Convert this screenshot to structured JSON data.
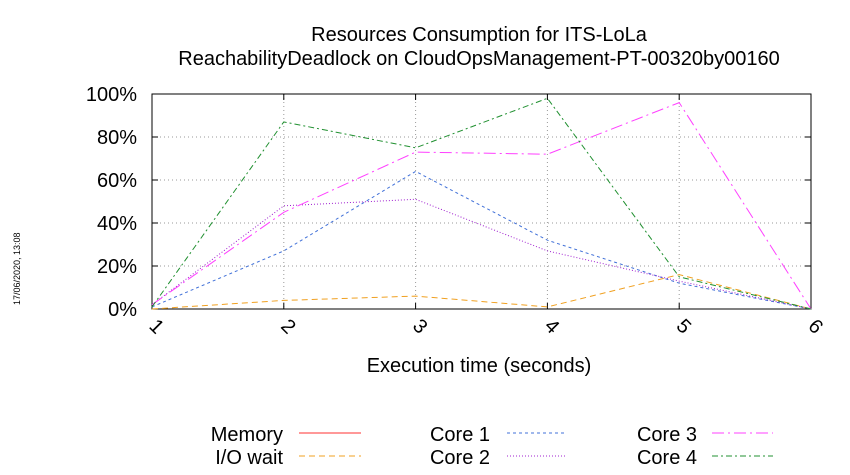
{
  "side_stamp": "17/06/2020, 13:08",
  "chart_data": {
    "type": "line",
    "title": "Resources Consumption for ITS-LoLa",
    "subtitle": "ReachabilityDeadlock on CloudOpsManagement-PT-00320by00160",
    "xlabel": "Execution time (seconds)",
    "ylabel": "",
    "x": [
      1,
      2,
      3,
      4,
      5,
      6
    ],
    "xlim": [
      1,
      6
    ],
    "ylim": [
      0,
      100
    ],
    "y_ticks": [
      "0%",
      "20%",
      "40%",
      "60%",
      "80%",
      "100%"
    ],
    "x_ticks": [
      "1",
      "2",
      "3",
      "4",
      "5",
      "6"
    ],
    "grid": true,
    "legend_position": "bottom",
    "series": [
      {
        "name": "Memory",
        "color": "#ff3030",
        "dash": "solid",
        "values": [
          null,
          null,
          null,
          null,
          null,
          null
        ]
      },
      {
        "name": "I/O wait",
        "color": "#f0a020",
        "dash": "6,4",
        "values": [
          0,
          4,
          6,
          1,
          16,
          0
        ]
      },
      {
        "name": "Core 1",
        "color": "#4070d8",
        "dash": "3,3",
        "values": [
          1,
          27,
          64,
          32,
          12,
          0
        ]
      },
      {
        "name": "Core 2",
        "color": "#a020d0",
        "dash": "1,2",
        "values": [
          2,
          48,
          51,
          27,
          13,
          0
        ]
      },
      {
        "name": "Core 3",
        "color": "#ff40ff",
        "dash": "12,4,2,4",
        "values": [
          2,
          45,
          73,
          72,
          96,
          0
        ]
      },
      {
        "name": "Core 4",
        "color": "#209030",
        "dash": "6,3,2,3",
        "values": [
          1,
          87,
          75,
          98,
          15,
          0
        ]
      }
    ]
  }
}
